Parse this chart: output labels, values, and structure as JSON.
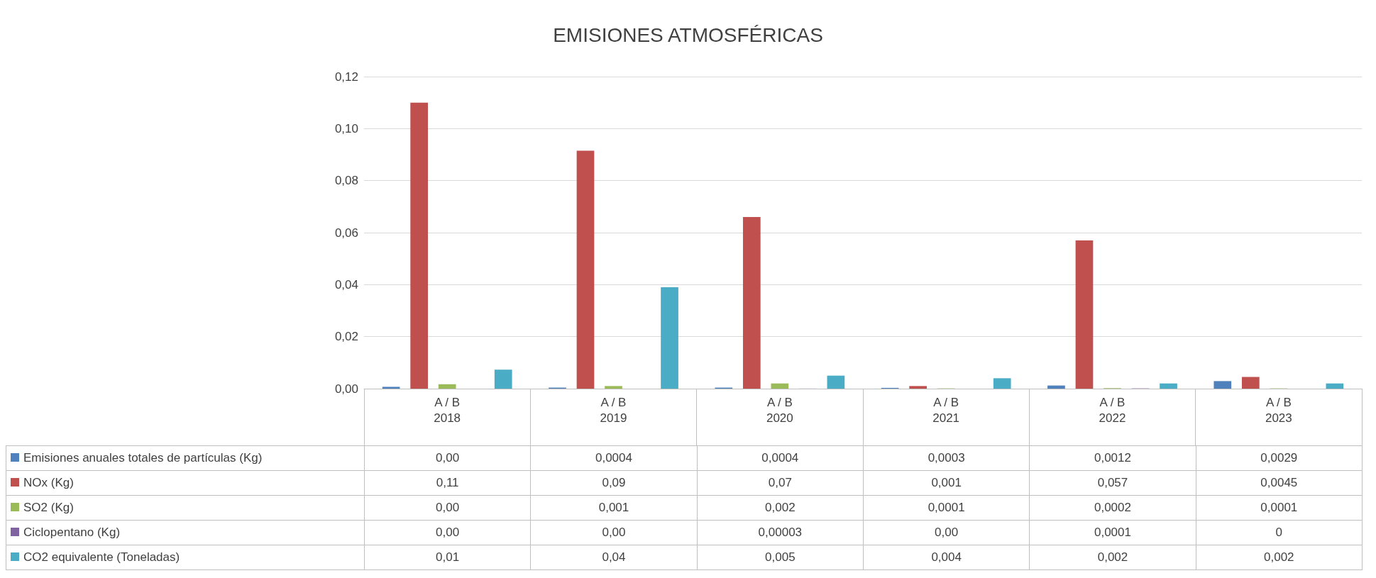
{
  "chart_data": {
    "type": "bar",
    "title": "EMISIONES ATMOSFÉRICAS",
    "categories": [
      "A / B\n2018",
      "A / B\n2019",
      "A / B\n2020",
      "A / B\n2021",
      "A / B\n2022",
      "A / B\n2023"
    ],
    "ylim": [
      0,
      0.12
    ],
    "yticks": [
      {
        "value": 0,
        "label": "0,00"
      },
      {
        "value": 0.02,
        "label": "0,02"
      },
      {
        "value": 0.04,
        "label": "0,04"
      },
      {
        "value": 0.06,
        "label": "0,06"
      },
      {
        "value": 0.08,
        "label": "0,08"
      },
      {
        "value": 0.1,
        "label": "0,10"
      },
      {
        "value": 0.12,
        "label": "0,12"
      }
    ],
    "grid": "y",
    "legend": "bottom left",
    "series": [
      {
        "name": "Emisiones anuales totales de partículas (Kg)",
        "color": "#4f81bd",
        "values": [
          0.0007,
          0.0004,
          0.0004,
          0.0003,
          0.0012,
          0.0029
        ],
        "value_labels": [
          "0,00",
          "0,0004",
          "0,0004",
          "0,0003",
          "0,0012",
          "0,0029"
        ]
      },
      {
        "name": "NOx (Kg)",
        "color": "#c0504d",
        "values": [
          0.11,
          0.0915,
          0.066,
          0.001,
          0.057,
          0.0045
        ],
        "value_labels": [
          "0,11",
          "0,09",
          "0,07",
          "0,001",
          "0,057",
          "0,0045"
        ]
      },
      {
        "name": "SO2 (Kg)",
        "color": "#9bbb59",
        "values": [
          0.0017,
          0.001,
          0.002,
          0.0001,
          0.0002,
          0.0001
        ],
        "value_labels": [
          "0,00",
          "0,001",
          "0,002",
          "0,0001",
          "0,0002",
          "0,0001"
        ]
      },
      {
        "name": "Ciclopentano (Kg)",
        "color": "#8064a2",
        "values": [
          0,
          0,
          3e-05,
          0,
          0.0001,
          0
        ],
        "value_labels": [
          "0,00",
          "0,00",
          "0,00003",
          "0,00",
          "0,0001",
          "0"
        ]
      },
      {
        "name": "CO2 equivalente (Toneladas)",
        "color": "#4bacc6",
        "values": [
          0.0073,
          0.039,
          0.005,
          0.004,
          0.002,
          0.002
        ],
        "value_labels": [
          "0,01",
          "0,04",
          "0,005",
          "0,004",
          "0,002",
          "0,002"
        ]
      }
    ]
  }
}
